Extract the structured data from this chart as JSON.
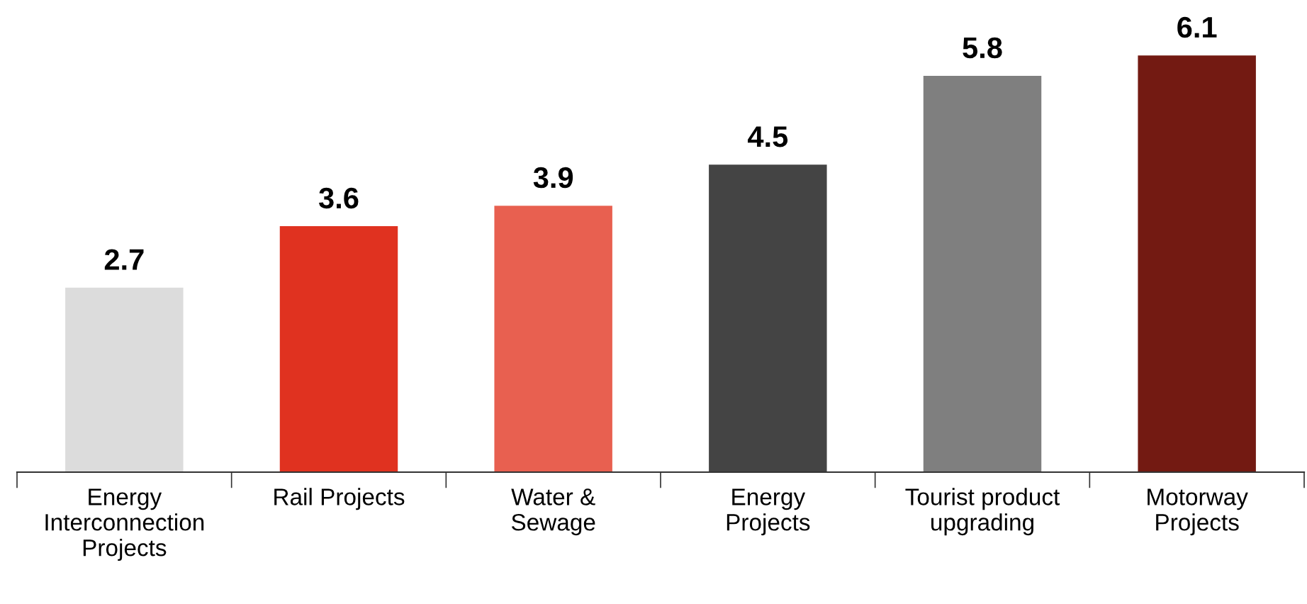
{
  "chart_data": {
    "type": "bar",
    "categories": [
      "Energy\nInterconnection\nProjects",
      "Rail Projects",
      "Water &\nSewage",
      "Energy\nProjects",
      "Tourist product\nupgrading",
      "Motorway\nProjects"
    ],
    "values": [
      2.7,
      3.6,
      3.9,
      4.5,
      5.8,
      6.1
    ],
    "colors": [
      "#dcdcdc",
      "#e03220",
      "#e86050",
      "#444444",
      "#7f7f7f",
      "#731a12"
    ],
    "data_labels": true,
    "grid": false,
    "legend": false,
    "tick_labels": "x"
  }
}
